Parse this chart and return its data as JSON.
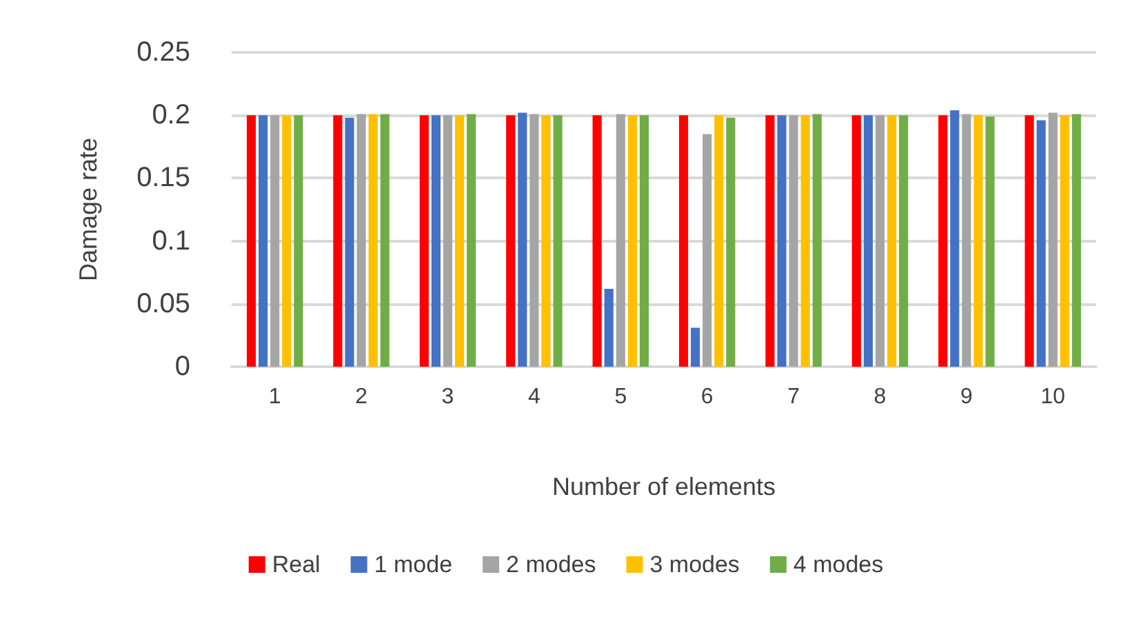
{
  "chart_data": {
    "type": "bar",
    "xlabel": "Number of elements",
    "ylabel": "Damage rate",
    "categories": [
      "1",
      "2",
      "3",
      "4",
      "5",
      "6",
      "7",
      "8",
      "9",
      "10"
    ],
    "series": [
      {
        "name": "Real",
        "color": "#ff0000",
        "values": [
          0.2,
          0.2,
          0.2,
          0.2,
          0.2,
          0.2,
          0.2,
          0.2,
          0.2,
          0.2
        ]
      },
      {
        "name": "1 mode",
        "color": "#4472c4",
        "values": [
          0.2,
          0.198,
          0.2,
          0.202,
          0.062,
          0.031,
          0.2,
          0.2,
          0.204,
          0.196
        ]
      },
      {
        "name": "2 modes",
        "color": "#a5a5a5",
        "values": [
          0.2,
          0.201,
          0.2,
          0.201,
          0.201,
          0.185,
          0.2,
          0.2,
          0.201,
          0.202
        ]
      },
      {
        "name": "3 modes",
        "color": "#ffc000",
        "values": [
          0.2,
          0.201,
          0.2,
          0.2,
          0.2,
          0.2,
          0.2,
          0.2,
          0.2,
          0.2
        ]
      },
      {
        "name": "4 modes",
        "color": "#70ad47",
        "values": [
          0.2,
          0.201,
          0.201,
          0.2,
          0.2,
          0.198,
          0.201,
          0.2,
          0.199,
          0.201
        ]
      }
    ],
    "ylim": [
      0,
      0.25
    ],
    "yticks": [
      0,
      0.05,
      0.1,
      0.15,
      0.2,
      0.25
    ],
    "grid": "y",
    "legend": "bottom"
  }
}
